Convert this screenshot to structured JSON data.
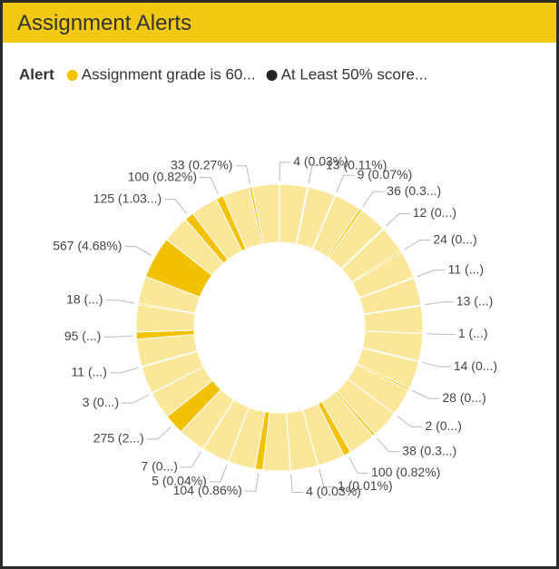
{
  "title": "Assignment Alerts",
  "chart_data": {
    "type": "donut",
    "legend_title": "Alert",
    "series": [
      {
        "name": "Assignment grade is 60...",
        "color": "#f2c200",
        "values": [
          4,
          370,
          13,
          370,
          9,
          370,
          36,
          370,
          12,
          370,
          24,
          370,
          11,
          370,
          13,
          370,
          1,
          370,
          14,
          370,
          28,
          370,
          2,
          370,
          38,
          370,
          100,
          370,
          1,
          370,
          4,
          370,
          104,
          370,
          5,
          370,
          7,
          370,
          275,
          370,
          3,
          370,
          11,
          370,
          95,
          370,
          18,
          370,
          567,
          370,
          125,
          370,
          100,
          370,
          33,
          370
        ],
        "value_labels": [
          "4 (0.03%)",
          null,
          "13 (0.11%)",
          null,
          "9 (0.07%)",
          null,
          "36 (0.3...)",
          null,
          "12 (0...)",
          null,
          "24 (0...)",
          null,
          "11 (...)",
          null,
          "13 (...)",
          null,
          "1 (...)",
          null,
          "14 (0...)",
          null,
          "28 (0...)",
          null,
          "2 (0...)",
          null,
          "38 (0.3...)",
          null,
          "100 (0.82%)",
          null,
          "1 (0.01%)",
          null,
          "4 (0.03%)",
          null,
          "104 (0.86%)",
          null,
          "5 (0.04%)",
          null,
          "7 (0...)",
          null,
          "275 (2...)",
          null,
          "3 (0...)",
          null,
          "11 (...)",
          null,
          "95 (...)",
          null,
          "18 (...)",
          null,
          "567 (4.68%)",
          null,
          "125 (1.03...)",
          null,
          "100 (0.82%)",
          null,
          "33 (0.27%)",
          null
        ]
      },
      {
        "name": "At Least 50% score...",
        "color": "#222222",
        "values": []
      }
    ]
  }
}
